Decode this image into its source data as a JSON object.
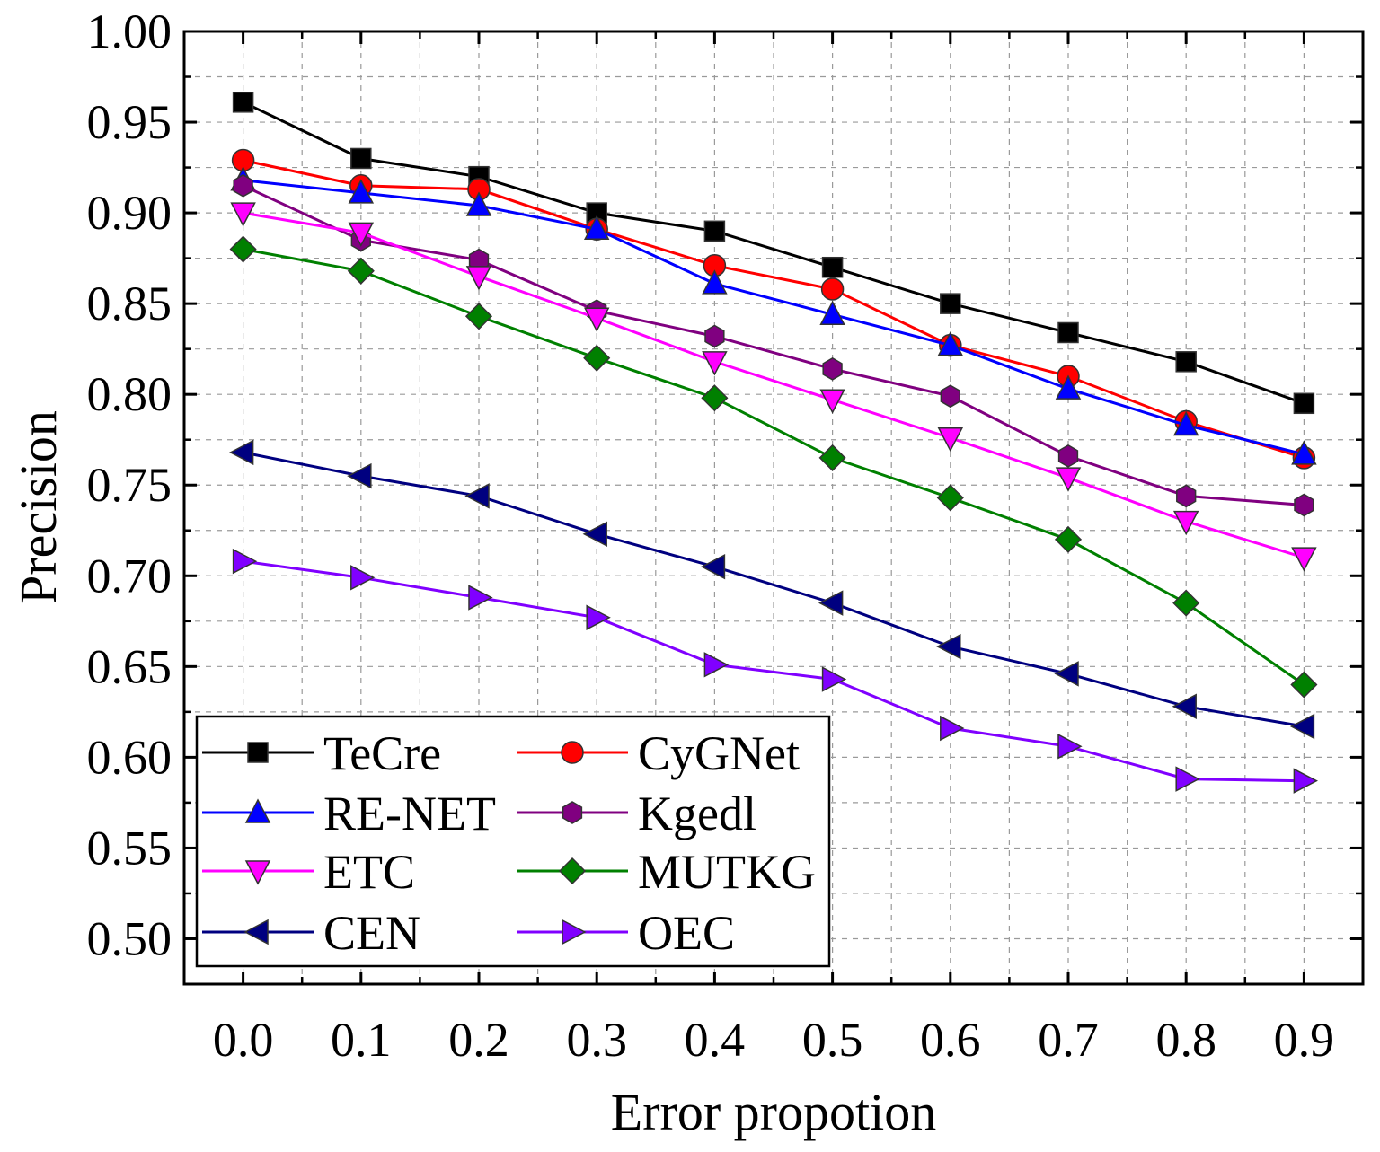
{
  "chart_data": {
    "type": "line",
    "title": "",
    "xlabel": "Error propotion",
    "ylabel": "Precision",
    "x": [
      0.0,
      0.1,
      0.2,
      0.3,
      0.4,
      0.5,
      0.6,
      0.7,
      0.8,
      0.9
    ],
    "x_tick_labels": [
      "0.0",
      "0.1",
      "0.2",
      "0.3",
      "0.4",
      "0.5",
      "0.6",
      "0.7",
      "0.8",
      "0.9"
    ],
    "y_tick_labels": [
      "0.50",
      "0.55",
      "0.60",
      "0.65",
      "0.70",
      "0.75",
      "0.80",
      "0.85",
      "0.90",
      "0.95",
      "1.00"
    ],
    "y_ticks": [
      0.5,
      0.55,
      0.6,
      0.65,
      0.7,
      0.75,
      0.8,
      0.85,
      0.9,
      0.95,
      1.0
    ],
    "xlim": [
      -0.05,
      0.95
    ],
    "ylim": [
      0.475,
      1.0
    ],
    "grid": true,
    "legend_position": "bottom-left",
    "series": [
      {
        "name": "TeCre",
        "color": "#000000",
        "marker": "square",
        "values": [
          0.961,
          0.93,
          0.92,
          0.9,
          0.89,
          0.87,
          0.85,
          0.834,
          0.818,
          0.795
        ]
      },
      {
        "name": "CyGNet",
        "color": "#ff0000",
        "marker": "circle",
        "values": [
          0.929,
          0.915,
          0.913,
          0.891,
          0.871,
          0.858,
          0.827,
          0.81,
          0.785,
          0.765
        ]
      },
      {
        "name": "RE-NET",
        "color": "#0000ff",
        "marker": "triangle-up",
        "values": [
          0.918,
          0.911,
          0.904,
          0.891,
          0.861,
          0.844,
          0.827,
          0.803,
          0.783,
          0.767
        ]
      },
      {
        "name": "Kgedl",
        "color": "#800080",
        "marker": "hexagon",
        "values": [
          0.915,
          0.885,
          0.874,
          0.846,
          0.832,
          0.814,
          0.799,
          0.766,
          0.744,
          0.739
        ]
      },
      {
        "name": "ETC",
        "color": "#ff00ff",
        "marker": "triangle-down",
        "values": [
          0.9,
          0.889,
          0.865,
          0.842,
          0.818,
          0.797,
          0.776,
          0.754,
          0.73,
          0.71
        ]
      },
      {
        "name": "MUTKG",
        "color": "#008000",
        "marker": "diamond",
        "values": [
          0.88,
          0.868,
          0.843,
          0.82,
          0.798,
          0.765,
          0.743,
          0.72,
          0.685,
          0.64
        ]
      },
      {
        "name": "CEN",
        "color": "#000080",
        "marker": "triangle-left",
        "values": [
          0.768,
          0.755,
          0.744,
          0.723,
          0.705,
          0.685,
          0.661,
          0.646,
          0.628,
          0.617
        ]
      },
      {
        "name": "OEC",
        "color": "#8000ff",
        "marker": "triangle-right",
        "values": [
          0.708,
          0.699,
          0.688,
          0.677,
          0.651,
          0.643,
          0.616,
          0.606,
          0.588,
          0.587
        ]
      }
    ]
  }
}
